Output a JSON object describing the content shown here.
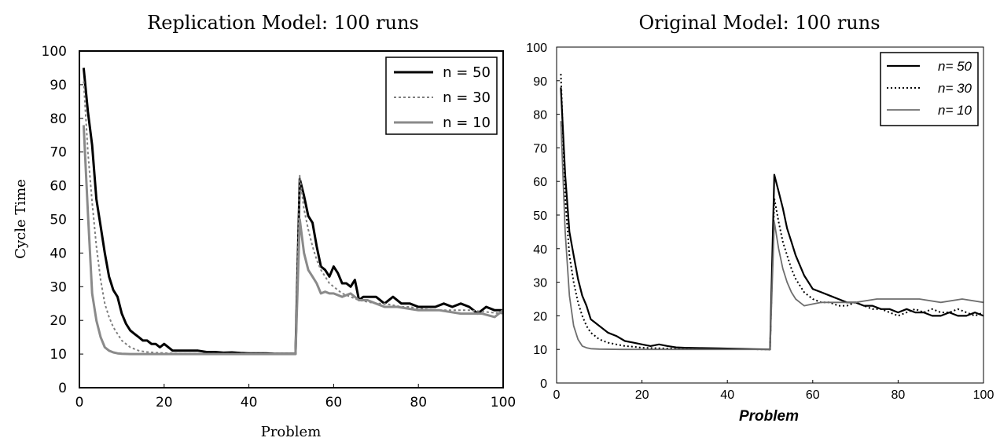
{
  "chart_data": [
    {
      "type": "line",
      "title": "Replication Model: 100 runs",
      "xlabel": "Problem",
      "ylabel": "Cycle Time",
      "xlim": [
        0,
        100
      ],
      "ylim": [
        0,
        100
      ],
      "xticks": [
        "0",
        "20",
        "40",
        "60",
        "80",
        "100"
      ],
      "yticks": [
        "0",
        "10",
        "20",
        "30",
        "40",
        "50",
        "60",
        "70",
        "80",
        "90",
        "100"
      ],
      "grid": false,
      "legend": "top-right",
      "series": [
        {
          "name": "n = 50",
          "color": "#000000",
          "style": "solid",
          "x": [
            1,
            2,
            3,
            4,
            5,
            6,
            7,
            8,
            9,
            10,
            11,
            12,
            13,
            14,
            15,
            16,
            17,
            18,
            19,
            20,
            22,
            24,
            26,
            28,
            30,
            32,
            34,
            36,
            38,
            40,
            42,
            44,
            46,
            48,
            51,
            52,
            53,
            54,
            55,
            56,
            57,
            58,
            59,
            60,
            61,
            62,
            63,
            64,
            65,
            66,
            67,
            68,
            69,
            70,
            72,
            74,
            76,
            78,
            80,
            82,
            84,
            86,
            88,
            90,
            92,
            94,
            96,
            98,
            100
          ],
          "y": [
            95,
            82,
            72,
            56,
            48,
            40,
            33,
            29,
            27,
            22,
            19,
            17,
            16,
            15,
            14,
            14,
            13,
            13,
            12,
            13,
            11,
            11,
            11,
            11,
            10.6,
            10.6,
            10.4,
            10.5,
            10.3,
            10.2,
            10.2,
            10.2,
            10.1,
            10.1,
            10.1,
            62,
            57,
            51,
            49,
            42,
            36,
            35,
            33,
            36,
            34,
            31,
            31,
            30,
            32,
            26,
            27,
            27,
            27,
            27,
            25,
            27,
            25,
            25,
            24,
            24,
            24,
            25,
            24,
            25,
            24,
            22,
            24,
            23,
            23
          ]
        },
        {
          "name": "n = 30",
          "color": "#7f7f7f",
          "style": "dotted",
          "x": [
            1,
            2,
            3,
            4,
            5,
            6,
            7,
            8,
            9,
            10,
            11,
            12,
            13,
            14,
            15,
            16,
            18,
            20,
            22,
            24,
            26,
            28,
            30,
            35,
            40,
            45,
            51,
            52,
            53,
            54,
            55,
            56,
            57,
            58,
            59,
            60,
            62,
            64,
            66,
            68,
            70,
            72,
            74,
            76,
            78,
            80,
            84,
            88,
            92,
            96,
            100
          ],
          "y": [
            91,
            70,
            55,
            42,
            32,
            25,
            21,
            18,
            16,
            14,
            13,
            12,
            11.5,
            11,
            10.8,
            10.6,
            10.4,
            10.3,
            10.2,
            10.1,
            10.1,
            10.1,
            10.1,
            10.1,
            10.1,
            10.1,
            10.1,
            63,
            53,
            47,
            42,
            38,
            35,
            33,
            31,
            30,
            28,
            27,
            26,
            25.5,
            25,
            25,
            24.5,
            24,
            24,
            23.5,
            23,
            23,
            23,
            22.5,
            22
          ]
        },
        {
          "name": "n = 10",
          "color": "#8a8a8a",
          "style": "solid",
          "x": [
            1,
            2,
            3,
            4,
            5,
            6,
            7,
            8,
            9,
            10,
            12,
            15,
            20,
            30,
            40,
            51,
            52,
            53,
            54,
            55,
            56,
            57,
            58,
            59,
            60,
            62,
            64,
            66,
            68,
            70,
            72,
            75,
            80,
            85,
            90,
            95,
            98,
            100
          ],
          "y": [
            78,
            52,
            28,
            20,
            15,
            12,
            11,
            10.5,
            10.2,
            10.1,
            10,
            10,
            10,
            10,
            10,
            10,
            50,
            40,
            35,
            33,
            31,
            28,
            28.5,
            28,
            28,
            27,
            28,
            26,
            26,
            25,
            24,
            24,
            23,
            23,
            22,
            22,
            21,
            23
          ]
        }
      ]
    },
    {
      "type": "line",
      "title": "Original Model: 100 runs",
      "xlabel": "Problem",
      "ylabel": "",
      "xlim": [
        0,
        100
      ],
      "ylim": [
        0,
        100
      ],
      "xticks": [
        "0",
        "20",
        "40",
        "60",
        "80",
        "100"
      ],
      "yticks": [
        "0",
        "10",
        "20",
        "30",
        "40",
        "50",
        "60",
        "70",
        "80",
        "90",
        "100"
      ],
      "grid": false,
      "legend": "top-right",
      "series": [
        {
          "name": "n= 50",
          "color": "#000000",
          "style": "solid",
          "x": [
            1,
            2,
            3,
            4,
            5,
            6,
            7,
            8,
            9,
            10,
            12,
            14,
            16,
            18,
            20,
            22,
            24,
            26,
            28,
            30,
            34,
            38,
            42,
            46,
            50,
            51,
            52,
            53,
            54,
            55,
            56,
            57,
            58,
            59,
            60,
            62,
            64,
            66,
            68,
            70,
            72,
            74,
            76,
            78,
            80,
            82,
            84,
            86,
            88,
            90,
            92,
            94,
            96,
            98,
            100
          ],
          "y": [
            88,
            62,
            45,
            38,
            31,
            26,
            23,
            19,
            18,
            17,
            15,
            14,
            12.5,
            12,
            11.5,
            11,
            11.5,
            11,
            10.6,
            10.5,
            10.4,
            10.3,
            10.2,
            10.1,
            10,
            62,
            57,
            52,
            46,
            42,
            38,
            35,
            32,
            30,
            28,
            27,
            26,
            25,
            24,
            24,
            23,
            23,
            22,
            22,
            21,
            22,
            21,
            21,
            20,
            20,
            21,
            20,
            20,
            21,
            20
          ]
        },
        {
          "name": "n= 30",
          "color": "#000000",
          "style": "dotted",
          "x": [
            1,
            2,
            3,
            4,
            5,
            6,
            7,
            8,
            9,
            10,
            12,
            14,
            16,
            18,
            20,
            25,
            30,
            40,
            50,
            51,
            52,
            53,
            54,
            55,
            56,
            57,
            58,
            60,
            62,
            64,
            66,
            68,
            70,
            72,
            74,
            76,
            78,
            80,
            82,
            84,
            86,
            88,
            90,
            92,
            94,
            96,
            98,
            100
          ],
          "y": [
            92,
            55,
            38,
            30,
            24,
            20,
            17,
            15,
            14,
            13,
            12,
            11.5,
            11,
            10.8,
            10.5,
            10.3,
            10.2,
            10.1,
            10,
            55,
            48,
            42,
            38,
            34,
            31,
            29,
            27,
            25,
            24,
            24,
            23,
            23,
            24,
            23,
            22,
            22,
            21,
            20,
            21,
            22,
            21,
            22,
            21,
            21,
            22,
            21,
            20,
            21
          ]
        },
        {
          "name": "n= 10",
          "color": "#6e6e6e",
          "style": "solid",
          "x": [
            1,
            2,
            3,
            4,
            5,
            6,
            7,
            8,
            10,
            15,
            20,
            30,
            40,
            50,
            51,
            52,
            53,
            54,
            55,
            56,
            57,
            58,
            60,
            62,
            65,
            70,
            75,
            80,
            85,
            90,
            95,
            100
          ],
          "y": [
            78,
            45,
            26,
            17,
            13,
            11,
            10.5,
            10.2,
            10.1,
            10,
            10,
            10,
            10,
            10,
            48,
            40,
            34,
            30,
            27,
            25,
            24,
            23,
            23.5,
            24,
            24,
            24,
            25,
            25,
            25,
            24,
            25,
            24
          ]
        }
      ]
    }
  ]
}
